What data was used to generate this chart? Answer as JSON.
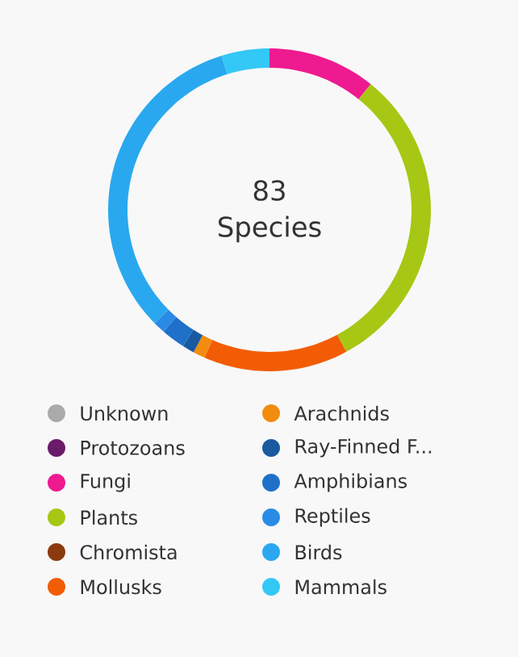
{
  "chart_data": {
    "type": "donut",
    "title": "83",
    "subtitle": "Species",
    "categories": [
      "Unknown",
      "Protozoans",
      "Fungi",
      "Plants",
      "Chromista",
      "Mollusks",
      "Arachnids",
      "Ray-Finned F...",
      "Amphibians",
      "Reptiles",
      "Birds",
      "Mammals"
    ],
    "values": [
      0,
      0,
      10.8,
      31.3,
      0,
      14.5,
      1.2,
      1.2,
      2.4,
      1.2,
      32.6,
      4.8
    ],
    "colors": [
      "#aaaaaa",
      "#6a1b6a",
      "#ee1a8f",
      "#a6c814",
      "#8b3a0f",
      "#f25c05",
      "#f28c0f",
      "#1a5aa0",
      "#1e70c8",
      "#2a8be6",
      "#29a8f0",
      "#33c8f5"
    ],
    "legend": "bottom"
  }
}
